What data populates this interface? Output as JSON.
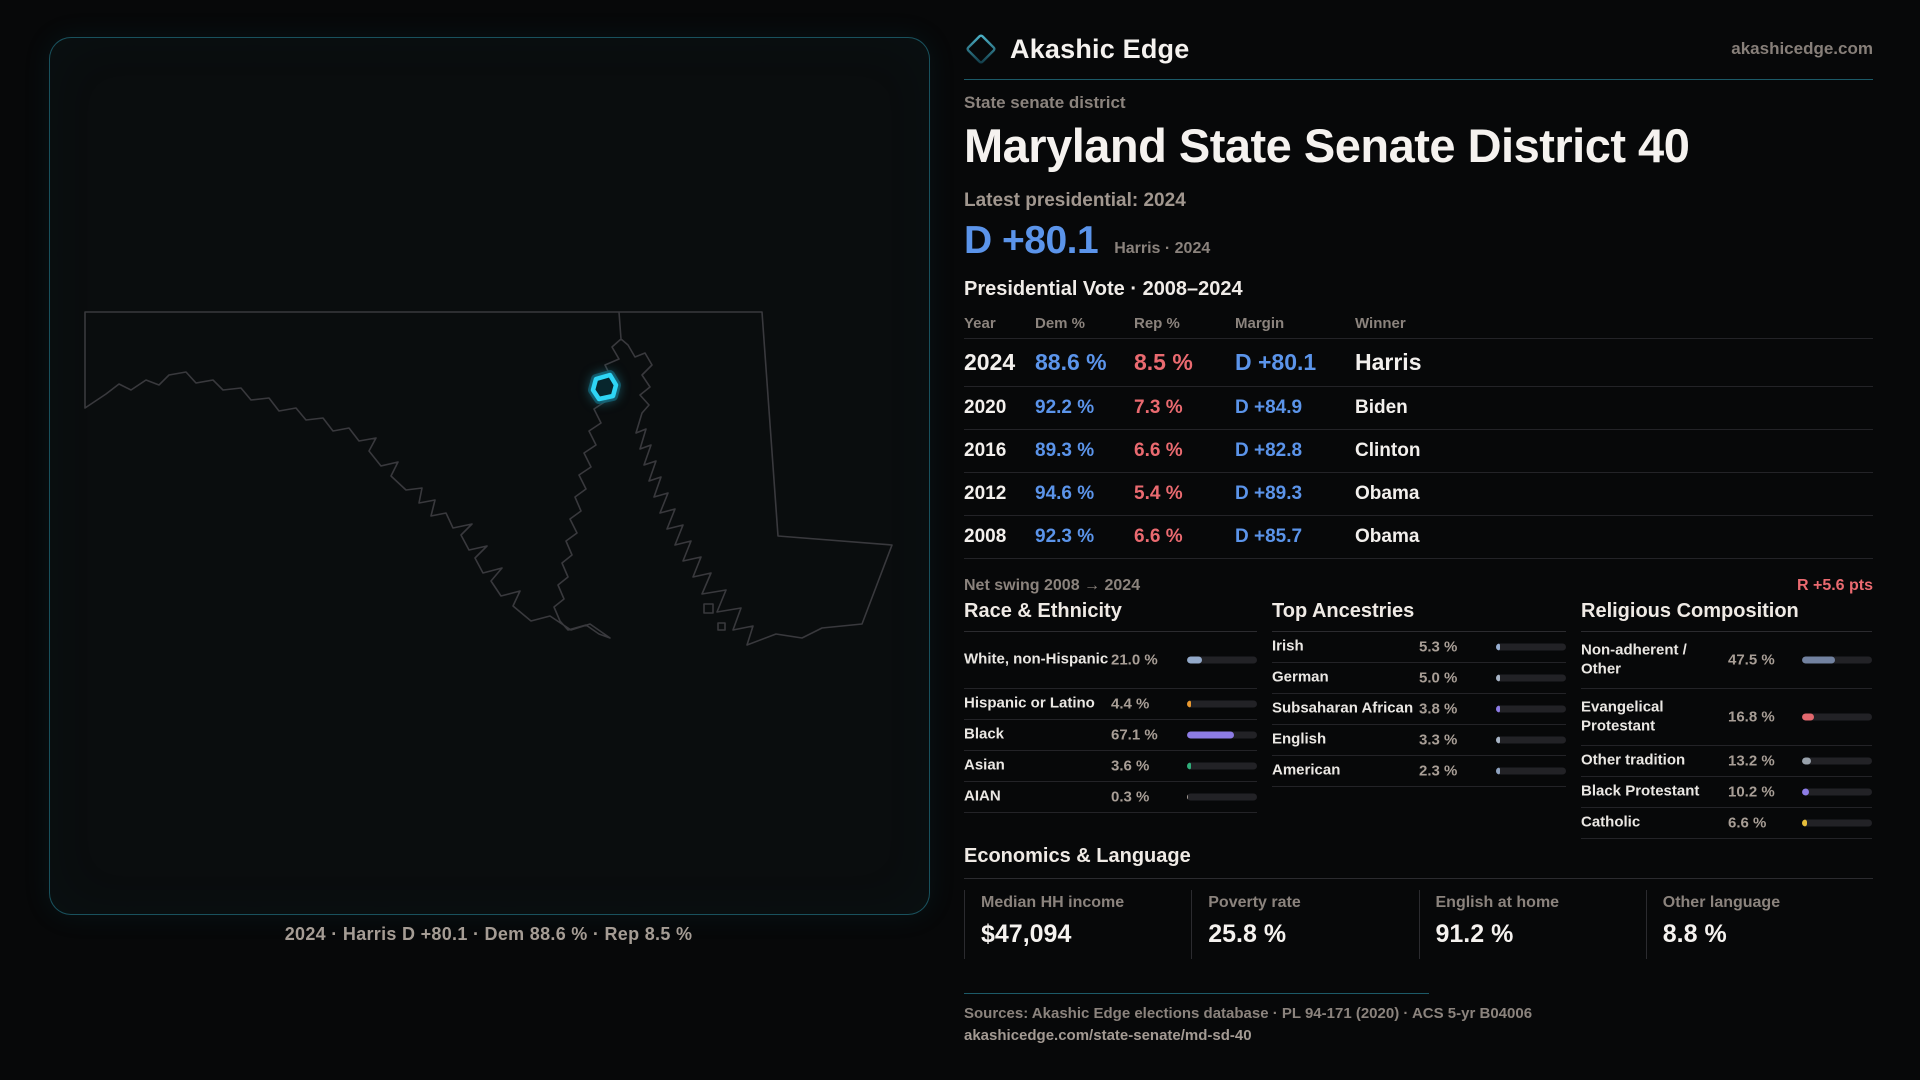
{
  "colors": {
    "dem_blue": "#5b94ea",
    "rep_red": "#ea6a70",
    "accent_teal": "#2ea8c4",
    "district_cyan": "#2ed5f5"
  },
  "icons": {
    "brand_logo": "diamond-outline-icon"
  },
  "header": {
    "brand": "Akashic Edge",
    "domain": "akashicedge.com"
  },
  "subtitle": "State senate district",
  "title": "Maryland State Senate District 40",
  "latest_label": "Latest presidential: 2024",
  "headline": {
    "margin": "D +80.1",
    "context": "Harris · 2024"
  },
  "table": {
    "title": "Presidential Vote · 2008–2024",
    "columns": {
      "year": "Year",
      "dem": "Dem %",
      "rep": "Rep %",
      "margin": "Margin",
      "winner": "Winner"
    },
    "rows": [
      {
        "year": "2024",
        "dem": "88.6 %",
        "rep": "8.5 %",
        "margin": "D +80.1",
        "winner": "Harris"
      },
      {
        "year": "2020",
        "dem": "92.2 %",
        "rep": "7.3 %",
        "margin": "D +84.9",
        "winner": "Biden"
      },
      {
        "year": "2016",
        "dem": "89.3 %",
        "rep": "6.6 %",
        "margin": "D +82.8",
        "winner": "Clinton"
      },
      {
        "year": "2012",
        "dem": "94.6 %",
        "rep": "5.4 %",
        "margin": "D +89.3",
        "winner": "Obama"
      },
      {
        "year": "2008",
        "dem": "92.3 %",
        "rep": "6.6 %",
        "margin": "D +85.7",
        "winner": "Obama"
      }
    ],
    "net_swing_label": "Net swing 2008 → 2024",
    "net_swing_value": "R +5.6 pts"
  },
  "sections": {
    "race": {
      "heading": "Race & Ethnicity",
      "rows": [
        {
          "label": "White, non-Hispanic",
          "value": "21.0 %",
          "pct": 21.0,
          "color": "#93a9c9"
        },
        {
          "label": "Hispanic or Latino",
          "value": "4.4 %",
          "pct": 4.4,
          "color": "#e8982f"
        },
        {
          "label": "Black",
          "value": "67.1 %",
          "pct": 67.1,
          "color": "#8d7ce6"
        },
        {
          "label": "Asian",
          "value": "3.6 %",
          "pct": 3.6,
          "color": "#2fae7a"
        },
        {
          "label": "AIAN",
          "value": "0.3 %",
          "pct": 0.3,
          "color": "#a89e96"
        }
      ]
    },
    "ancestries": {
      "heading": "Top Ancestries",
      "rows": [
        {
          "label": "Irish",
          "value": "5.3 %",
          "pct": 5.3,
          "color": "#97aed1"
        },
        {
          "label": "German",
          "value": "5.0 %",
          "pct": 5.0,
          "color": "#a8b5c6"
        },
        {
          "label": "Subsaharan African",
          "value": "3.8 %",
          "pct": 3.8,
          "color": "#8d7ce6"
        },
        {
          "label": "English",
          "value": "3.3 %",
          "pct": 3.3,
          "color": "#a8b5c6"
        },
        {
          "label": "American",
          "value": "2.3 %",
          "pct": 2.3,
          "color": "#8fa3c0"
        }
      ]
    },
    "religion": {
      "heading": "Religious Composition",
      "rows": [
        {
          "label": "Non-adherent / Other",
          "value": "47.5 %",
          "pct": 47.5,
          "color": "#7282a0"
        },
        {
          "label": "Evangelical Protestant",
          "value": "16.8 %",
          "pct": 16.8,
          "color": "#e2686e"
        },
        {
          "label": "Other tradition",
          "value": "13.2 %",
          "pct": 13.2,
          "color": "#98a1ab"
        },
        {
          "label": "Black Protestant",
          "value": "10.2 %",
          "pct": 10.2,
          "color": "#8d7ce6"
        },
        {
          "label": "Catholic",
          "value": "6.6 %",
          "pct": 6.6,
          "color": "#e5bd3a"
        }
      ]
    }
  },
  "economics": {
    "heading": "Economics & Language",
    "stats": [
      {
        "label": "Median HH income",
        "value": "$47,094"
      },
      {
        "label": "Poverty rate",
        "value": "25.8 %"
      },
      {
        "label": "English at home",
        "value": "91.2 %"
      },
      {
        "label": "Other language",
        "value": "8.8 %"
      }
    ]
  },
  "map": {
    "caption": "2024 · Harris D +80.1 · Dem 88.6 % · Rep 8.5 %"
  },
  "footer": {
    "sources": "Sources: Akashic Edge elections database · PL 94-171 (2020) · ACS 5-yr B04006",
    "permalink": "akashicedge.com/state-senate/md-sd-40"
  }
}
